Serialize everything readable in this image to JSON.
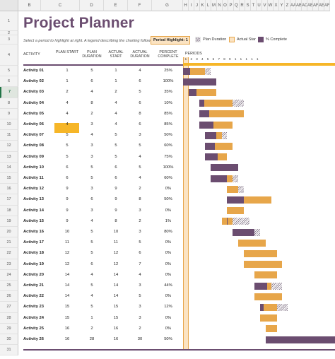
{
  "column_headers": [
    "B",
    "C",
    "D",
    "E",
    "F",
    "G",
    "H",
    "I",
    "J",
    "K",
    "L",
    "M",
    "N",
    "O",
    "P",
    "Q",
    "R",
    "S",
    "T",
    "U",
    "V",
    "W",
    "X",
    "Y",
    "Z",
    "AA",
    "AB",
    "AC",
    "AE",
    "AF",
    "AE",
    "AF"
  ],
  "row_numbers": [
    "1",
    "2",
    "3",
    "4",
    "5",
    "6",
    "7",
    "8",
    "9",
    "10",
    "11",
    "12",
    "13",
    "14",
    "15",
    "16",
    "17",
    "18",
    "19",
    "20",
    "21",
    "22",
    "23",
    "24",
    "25",
    "26",
    "27",
    "28",
    "29",
    "30",
    "31"
  ],
  "title": "Project Planner",
  "subtitle": "Select a period to highlight at right.  A legend describing the charting follows.",
  "period_highlight": {
    "label": "Period Highlight:",
    "value": "1"
  },
  "legend": {
    "plan": "Plan Duration",
    "actual": "Actual Star",
    "complete": "% Complete"
  },
  "headers": {
    "activity": "ACTIVITY",
    "plan_start": "PLAN START",
    "plan_duration": "PLAN DURATION",
    "actual_start": "ACTUAL START",
    "actual_duration": "ACTUAL DURATION",
    "percent_complete": "PERCENT COMPLETE",
    "periods": "PERIODS"
  },
  "period_numbers": [
    "1",
    "2",
    "3",
    "4",
    "5",
    "6",
    "7",
    "8",
    "9",
    "1",
    "1",
    "1",
    "1",
    "1"
  ],
  "activities": [
    {
      "name": "Activity 01",
      "plan_start": 1,
      "plan_duration": 5,
      "actual_start": 1,
      "actual_duration": 4,
      "percent": "25%"
    },
    {
      "name": "Activity 02",
      "plan_start": 1,
      "plan_duration": 6,
      "actual_start": 1,
      "actual_duration": 6,
      "percent": "100%"
    },
    {
      "name": "Activity 03",
      "plan_start": 2,
      "plan_duration": 4,
      "actual_start": 2,
      "actual_duration": 5,
      "percent": "35%"
    },
    {
      "name": "Activity 04",
      "plan_start": 4,
      "plan_duration": 8,
      "actual_start": 4,
      "actual_duration": 6,
      "percent": "10%"
    },
    {
      "name": "Activity 05",
      "plan_start": 4,
      "plan_duration": 2,
      "actual_start": 4,
      "actual_duration": 8,
      "percent": "85%"
    },
    {
      "name": "Activity 06",
      "plan_start": 4,
      "plan_duration": 3,
      "actual_start": 4,
      "actual_duration": 6,
      "percent": "85%"
    },
    {
      "name": "Activity 07",
      "plan_start": 5,
      "plan_duration": 4,
      "actual_start": 5,
      "actual_duration": 3,
      "percent": "50%"
    },
    {
      "name": "Activity 08",
      "plan_start": 5,
      "plan_duration": 3,
      "actual_start": 5,
      "actual_duration": 5,
      "percent": "60%"
    },
    {
      "name": "Activity 09",
      "plan_start": 5,
      "plan_duration": 3,
      "actual_start": 5,
      "actual_duration": 4,
      "percent": "75%"
    },
    {
      "name": "Activity 10",
      "plan_start": 6,
      "plan_duration": 5,
      "actual_start": 6,
      "actual_duration": 5,
      "percent": "100%"
    },
    {
      "name": "Activity 11",
      "plan_start": 6,
      "plan_duration": 5,
      "actual_start": 6,
      "actual_duration": 4,
      "percent": "60%"
    },
    {
      "name": "Activity 12",
      "plan_start": 9,
      "plan_duration": 3,
      "actual_start": 9,
      "actual_duration": 2,
      "percent": "0%"
    },
    {
      "name": "Activity 13",
      "plan_start": 9,
      "plan_duration": 6,
      "actual_start": 9,
      "actual_duration": 8,
      "percent": "50%"
    },
    {
      "name": "Activity 14",
      "plan_start": 9,
      "plan_duration": 3,
      "actual_start": 9,
      "actual_duration": 3,
      "percent": "0%"
    },
    {
      "name": "Activity 15",
      "plan_start": 9,
      "plan_duration": 4,
      "actual_start": 8,
      "actual_duration": 2,
      "percent": "1%"
    },
    {
      "name": "Activity 16",
      "plan_start": 10,
      "plan_duration": 5,
      "actual_start": 10,
      "actual_duration": 3,
      "percent": "80%"
    },
    {
      "name": "Activity 17",
      "plan_start": 11,
      "plan_duration": 5,
      "actual_start": 11,
      "actual_duration": 5,
      "percent": "0%"
    },
    {
      "name": "Activity 18",
      "plan_start": 12,
      "plan_duration": 5,
      "actual_start": 12,
      "actual_duration": 6,
      "percent": "0%"
    },
    {
      "name": "Activity 19",
      "plan_start": 12,
      "plan_duration": 6,
      "actual_start": 12,
      "actual_duration": 7,
      "percent": "0%"
    },
    {
      "name": "Activity 20",
      "plan_start": 14,
      "plan_duration": 4,
      "actual_start": 14,
      "actual_duration": 4,
      "percent": "0%"
    },
    {
      "name": "Activity 21",
      "plan_start": 14,
      "plan_duration": 5,
      "actual_start": 14,
      "actual_duration": 3,
      "percent": "44%"
    },
    {
      "name": "Activity 22",
      "plan_start": 14,
      "plan_duration": 4,
      "actual_start": 14,
      "actual_duration": 5,
      "percent": "0%"
    },
    {
      "name": "Activity 23",
      "plan_start": 15,
      "plan_duration": 5,
      "actual_start": 15,
      "actual_duration": 3,
      "percent": "12%"
    },
    {
      "name": "Activity 24",
      "plan_start": 15,
      "plan_duration": 1,
      "actual_start": 15,
      "actual_duration": 3,
      "percent": "0%"
    },
    {
      "name": "Activity 25",
      "plan_start": 16,
      "plan_duration": 2,
      "actual_start": 16,
      "actual_duration": 2,
      "percent": "0%"
    },
    {
      "name": "Activity 26",
      "plan_start": 16,
      "plan_duration": 28,
      "actual_start": 16,
      "actual_duration": 30,
      "percent": "50%"
    }
  ],
  "colors": {
    "accent": "#6b4d70",
    "highlight": "#f6b628",
    "actual": "#e7a64a"
  }
}
